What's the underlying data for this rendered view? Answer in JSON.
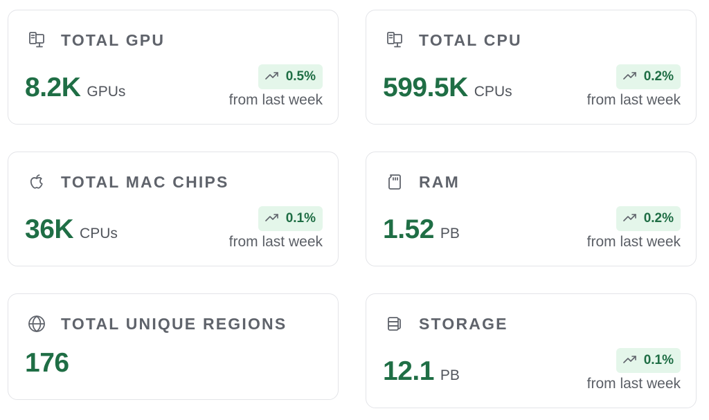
{
  "cards": [
    {
      "title": "TOTAL GPU",
      "icon": "computer-icon",
      "value": "8.2K",
      "unit": "GPUs",
      "change": "0.5%",
      "period": "from last week"
    },
    {
      "title": "TOTAL CPU",
      "icon": "computer-icon",
      "value": "599.5K",
      "unit": "CPUs",
      "change": "0.2%",
      "period": "from last week"
    },
    {
      "title": "TOTAL MAC CHIPS",
      "icon": "apple-icon",
      "value": "36K",
      "unit": "CPUs",
      "change": "0.1%",
      "period": "from last week"
    },
    {
      "title": "RAM",
      "icon": "memory-card-icon",
      "value": "1.52",
      "unit": "PB",
      "change": "0.2%",
      "period": "from last week"
    },
    {
      "title": "TOTAL UNIQUE REGIONS",
      "icon": "globe-icon",
      "value": "176"
    },
    {
      "title": "STORAGE",
      "icon": "database-icon",
      "value": "12.1",
      "unit": "PB",
      "change": "0.1%",
      "period": "from last week"
    }
  ],
  "colors": {
    "accent": "#1f6e45",
    "badge_bg": "#e4f6ea",
    "title": "#5f636b",
    "border": "#e3e4e8"
  }
}
